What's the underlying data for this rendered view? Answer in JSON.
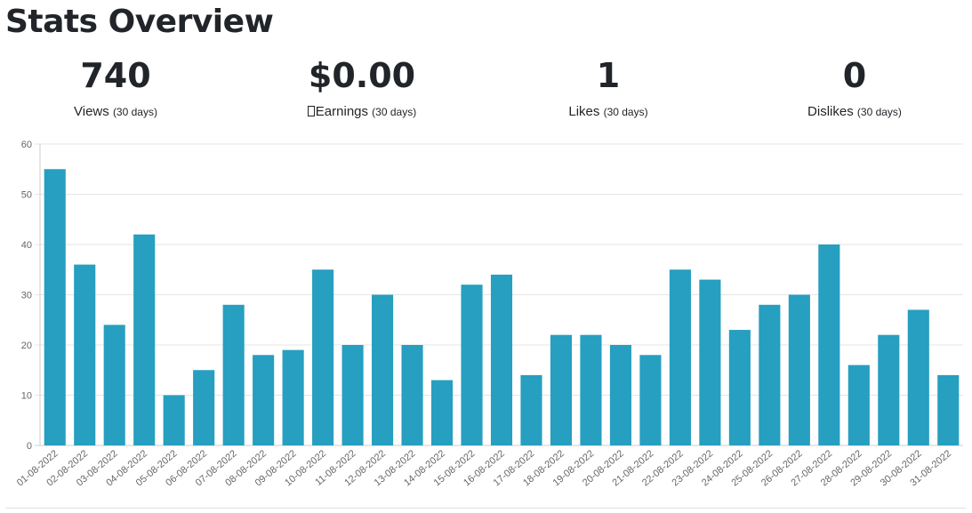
{
  "page": {
    "title": "Stats Overview"
  },
  "stats": [
    {
      "value": "740",
      "label": "Views",
      "period": "(30 days)",
      "icon": ""
    },
    {
      "value": "$0.00",
      "label": "Earnings",
      "period": "(30 days)",
      "icon": "missing-glyph-icon"
    },
    {
      "value": "1",
      "label": "Likes",
      "period": "(30 days)",
      "icon": ""
    },
    {
      "value": "0",
      "label": "Dislikes",
      "period": "(30 days)",
      "icon": ""
    }
  ],
  "chart_data": {
    "type": "bar",
    "categories": [
      "01-08-2022",
      "02-08-2022",
      "03-08-2022",
      "04-08-2022",
      "05-08-2022",
      "06-08-2022",
      "07-08-2022",
      "08-08-2022",
      "09-08-2022",
      "10-08-2022",
      "11-08-2022",
      "12-08-2022",
      "13-08-2022",
      "14-08-2022",
      "15-08-2022",
      "16-08-2022",
      "17-08-2022",
      "18-08-2022",
      "19-08-2022",
      "20-08-2022",
      "21-08-2022",
      "22-08-2022",
      "23-08-2022",
      "24-08-2022",
      "25-08-2022",
      "26-08-2022",
      "27-08-2022",
      "28-08-2022",
      "29-08-2022",
      "30-08-2022",
      "31-08-2022"
    ],
    "values": [
      55,
      36,
      24,
      42,
      10,
      15,
      28,
      18,
      19,
      35,
      20,
      30,
      20,
      13,
      32,
      34,
      14,
      22,
      22,
      20,
      18,
      35,
      33,
      23,
      28,
      30,
      40,
      16,
      22,
      27,
      14
    ],
    "yticks": [
      0,
      10,
      20,
      30,
      40,
      50,
      60
    ],
    "ylim": [
      0,
      60
    ],
    "grid": true,
    "colors": {
      "bar": "#269fc0",
      "grid": "#e5e5e5",
      "axis": "#cccccc"
    }
  }
}
